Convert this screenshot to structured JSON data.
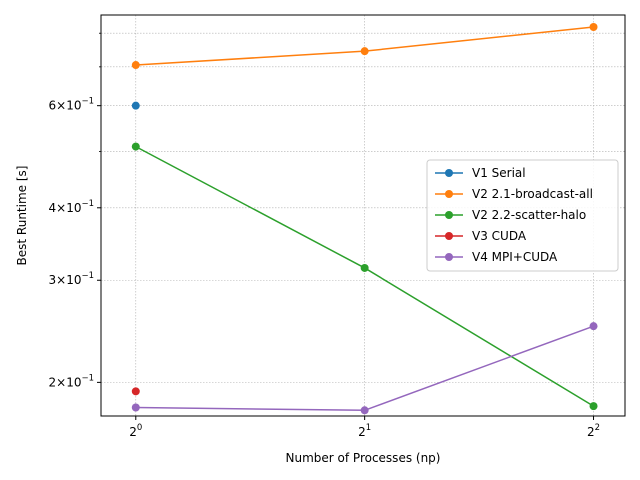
{
  "chart_data": {
    "type": "line",
    "xlabel": "Number of Processes (np)",
    "ylabel": "Best Runtime [s]",
    "x_scale": "log2",
    "y_scale": "log10",
    "x": [
      1,
      2,
      4
    ],
    "xlim": [
      0.9,
      4.4
    ],
    "ylim": [
      0.175,
      0.86
    ],
    "x_ticks": [
      {
        "value": 1,
        "base": "2",
        "exp": "0"
      },
      {
        "value": 2,
        "base": "2",
        "exp": "1"
      },
      {
        "value": 4,
        "base": "2",
        "exp": "2"
      }
    ],
    "y_ticks": [
      {
        "value": 0.2,
        "mant": "2",
        "base": "10",
        "exp": "−1"
      },
      {
        "value": 0.3,
        "mant": "3",
        "base": "10",
        "exp": "−1"
      },
      {
        "value": 0.4,
        "mant": "4",
        "base": "10",
        "exp": "−1"
      },
      {
        "value": 0.6,
        "mant": "6",
        "base": "10",
        "exp": "−1"
      }
    ],
    "y_minor_ticks": [
      0.5,
      0.7,
      0.8
    ],
    "grid": true,
    "legend_position": "center-right",
    "series": [
      {
        "name": "V1 Serial",
        "color": "#1f77b4",
        "values": [
          0.6,
          null,
          null
        ]
      },
      {
        "name": "V2 2.1-broadcast-all",
        "color": "#ff7f0e",
        "values": [
          0.705,
          0.745,
          0.82
        ]
      },
      {
        "name": "V2 2.2-scatter-halo",
        "color": "#2ca02c",
        "values": [
          0.51,
          0.315,
          0.182
        ]
      },
      {
        "name": "V3 CUDA",
        "color": "#d62728",
        "values": [
          0.193,
          null,
          null
        ]
      },
      {
        "name": "V4 MPI+CUDA",
        "color": "#9467bd",
        "values": [
          0.181,
          0.179,
          0.25
        ]
      }
    ]
  }
}
